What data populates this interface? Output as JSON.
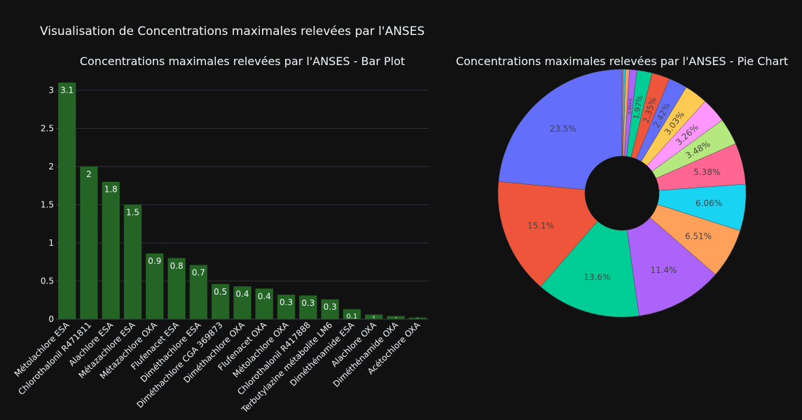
{
  "figure_title": "Visualisation de Concentrations maximales relevées par l'ANSES",
  "colors": {
    "background": "#111111",
    "bar": "#246424",
    "bar_outline": "#1c4f1c",
    "grid": "#2c3144",
    "text": "#f2f5fa",
    "pie_hole": "#111111",
    "pie_colors": [
      "#636efa",
      "#ef553b",
      "#00cc96",
      "#ab63fa",
      "#ffa15a",
      "#19d3f3",
      "#ff6692",
      "#b6e880",
      "#ff97ff",
      "#fecb52"
    ]
  },
  "chart_data": [
    {
      "type": "bar",
      "title": "Concentrations maximales relevées par l'ANSES - Bar Plot",
      "xlabel": "",
      "ylabel": "",
      "ylim": [
        0,
        3.1
      ],
      "yticks": [
        0,
        0.5,
        1,
        1.5,
        2,
        2.5,
        3
      ],
      "ytick_labels": [
        "0",
        "0.5",
        "1",
        "1.5",
        "2",
        "2.5",
        "3"
      ],
      "grid": true,
      "categories": [
        "Métolachlore ESA",
        "Chlorothalonil R471811",
        "Alachlore ESA",
        "Métazachlore ESA",
        "Métazachlore OXA",
        "Flufenacet ESA",
        "Diméthachlore ESA",
        "Diméthachlore CGA 369873",
        "Diméthachlore OXA",
        "Flufenacet OXA",
        "Métolachlore OXA",
        "Chlorothalonil R417888",
        "Terbutylazine métabolite LM6",
        "Diméthénamide ESA",
        "Alachlore OXA",
        "Diméthénamide OXA",
        "Acétochlore OXA"
      ],
      "values": [
        3.1,
        2.0,
        1.8,
        1.5,
        0.86,
        0.8,
        0.71,
        0.46,
        0.43,
        0.4,
        0.32,
        0.31,
        0.26,
        0.13,
        0.06,
        0.04,
        0.02
      ],
      "data_labels": [
        "3.1",
        "2",
        "1.8",
        "1.5",
        "0.9",
        "0.8",
        "0.7",
        "0.5",
        "0.4",
        "0.4",
        "0.3",
        "0.3",
        "0.3",
        "0.1",
        "0",
        "0",
        "0"
      ]
    },
    {
      "type": "pie",
      "title": "Concentrations maximales relevées par l'ANSES - Pie Chart",
      "hole": 0.3,
      "values": [
        23.5,
        15.1,
        13.6,
        11.4,
        6.51,
        6.06,
        5.38,
        3.48,
        3.26,
        3.03,
        2.42,
        2.35,
        1.97,
        0.984,
        0.5,
        0.3,
        0.15
      ],
      "labels": [
        "23.5%",
        "15.1%",
        "13.6%",
        "11.4%",
        "6.51%",
        "6.06%",
        "5.38%",
        "3.48%",
        "3.26%",
        "3.03%",
        "2.42%",
        "2.35%",
        "1.97%",
        "0.984%",
        "",
        "",
        ""
      ],
      "direction": "counterclockwise",
      "start": "top"
    }
  ]
}
